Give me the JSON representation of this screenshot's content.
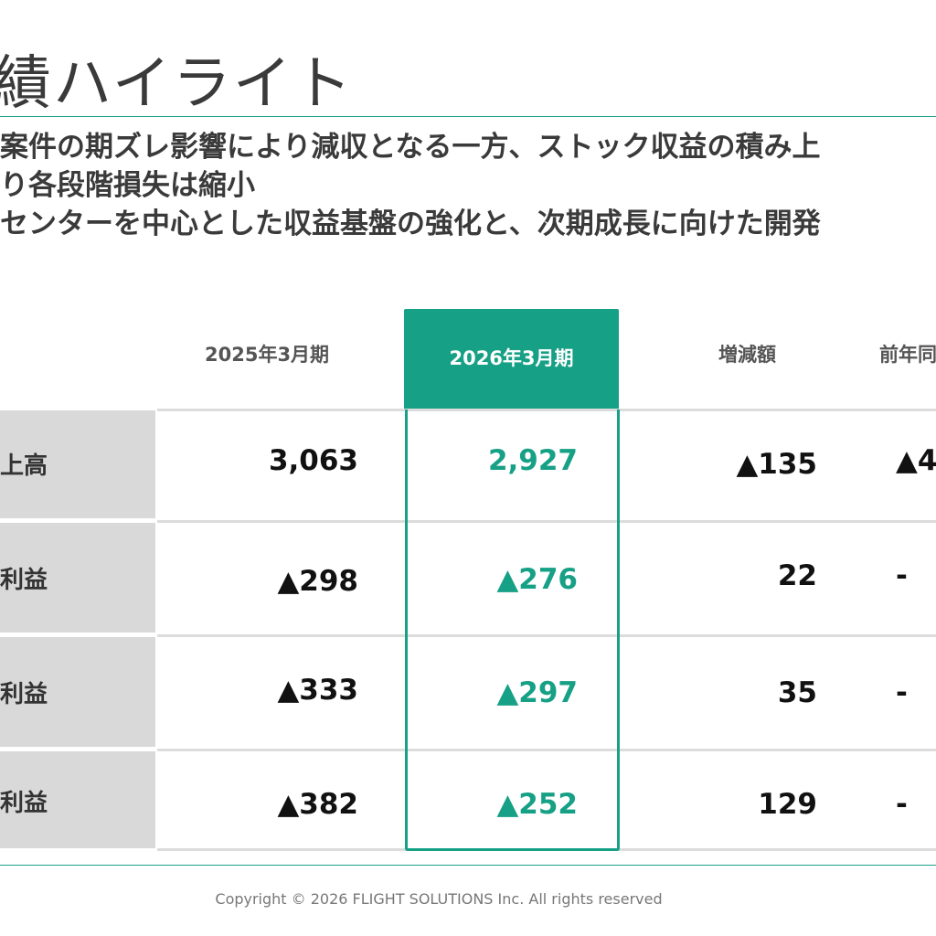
{
  "title": "績ハイライト",
  "bullets": [
    "案件の期ズレ影響により減収となる一方、ストック収益の積み上",
    "り各段階損失は縮小",
    "センターを中心とした収益基盤の強化と、次期成長に向けた開発"
  ],
  "table": {
    "columns": [
      "2025年3月期",
      "2026年3月期",
      "増減額",
      "前年同"
    ],
    "rows": [
      {
        "label": "売上高",
        "prev": "3,063",
        "curr": "2,927",
        "diff": "▲135",
        "yoy": "▲4"
      },
      {
        "label": "業利益",
        "prev": "▲298",
        "curr": "▲276",
        "diff": "22",
        "yoy": "-"
      },
      {
        "label": "常利益",
        "prev": "▲333",
        "curr": "▲297",
        "diff": "35",
        "yoy": "-"
      },
      {
        "label": "純利益",
        "prev": "▲382",
        "curr": "▲252",
        "diff": "129",
        "yoy": "-"
      }
    ]
  },
  "colors": {
    "accent": "#16a085",
    "label_bg": "#d9d9d9",
    "grid": "#dcdcdc"
  },
  "footer": "Copyright ©  2026 FLIGHT SOLUTIONS Inc. All rights reserved"
}
